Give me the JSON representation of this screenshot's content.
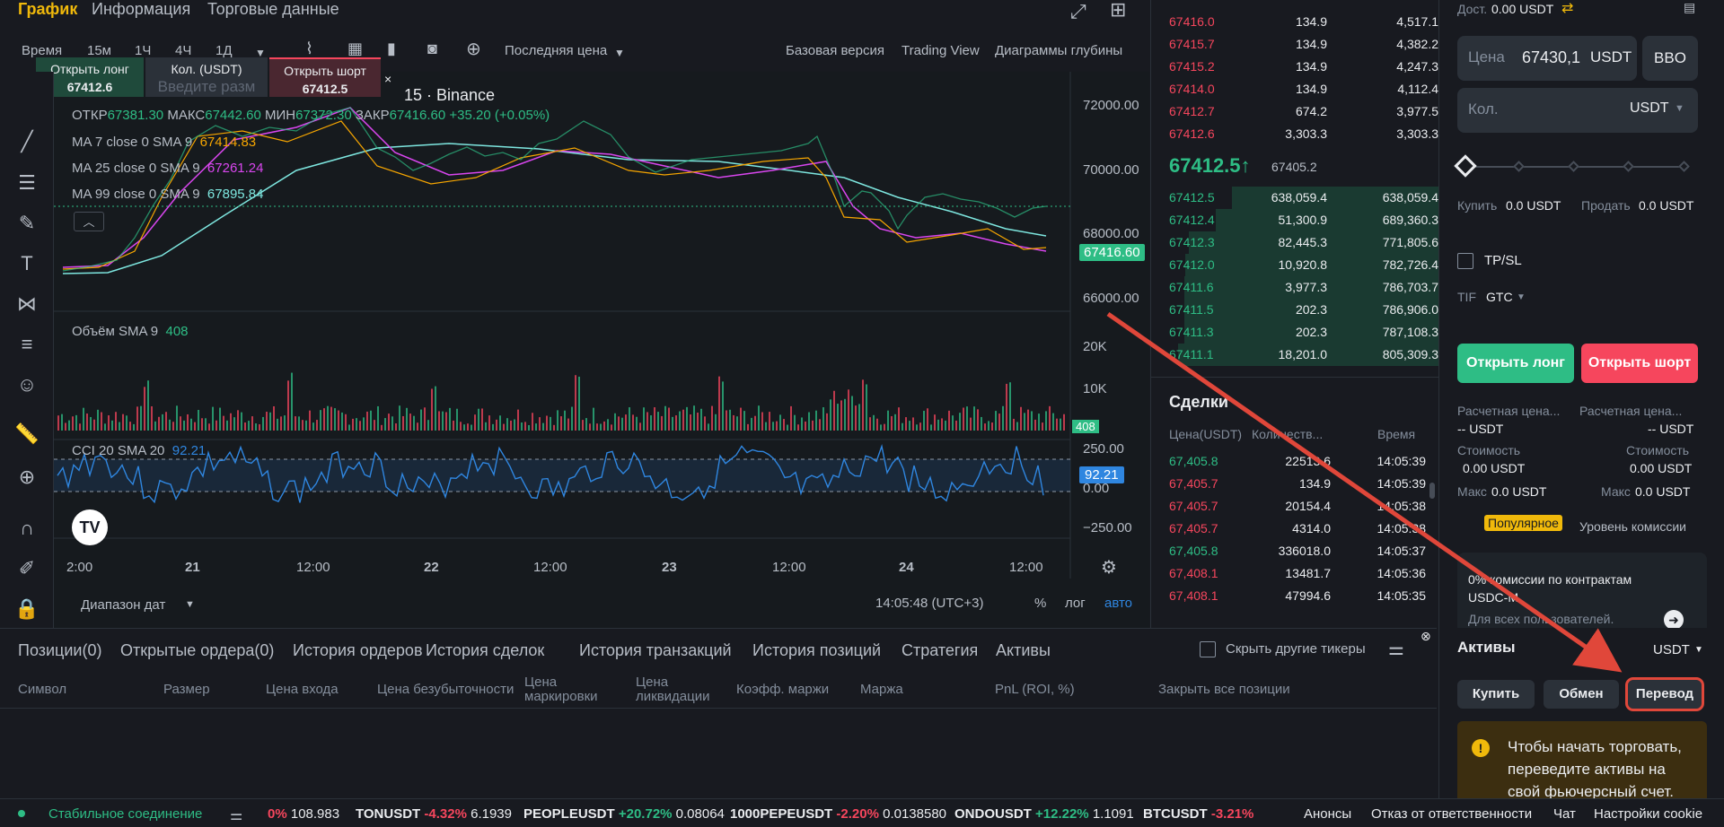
{
  "top_tabs": {
    "chart": "График",
    "info": "Информация",
    "trading_data": "Торговые данные"
  },
  "timeframes": [
    "Время",
    "15м",
    "1Ч",
    "4Ч",
    "1Д"
  ],
  "price_type": "Последняя цена",
  "views": {
    "basic": "Базовая версия",
    "tradingview": "Trading View",
    "depth": "Диаграммы глубины"
  },
  "quick_order": {
    "long_label": "Открыть лонг",
    "long_price": "67412.6",
    "qty_label": "Кол. (USDT)",
    "qty_placeholder": "Введите разм",
    "short_label": "Открыть шорт",
    "short_price": "67412.5"
  },
  "symbol_suffix": "15 · Binance",
  "ohlc": {
    "o_label": "ОТКР",
    "o": "67381.30",
    "h_label": "МАКС",
    "h": "67442.60",
    "l_label": "МИН",
    "l": "67372.30",
    "c_label": "ЗАКР",
    "c": "67416.60",
    "chg": "+35.20 (+0.05%)"
  },
  "ma": [
    {
      "label": "MA 7 close 0 SMA 9",
      "value": "67414.83",
      "color": "#f7a600"
    },
    {
      "label": "MA 25 close 0 SMA 9",
      "value": "67261.24",
      "color": "#d946ef"
    },
    {
      "label": "MA 99 close 0 SMA 9",
      "value": "67895.84",
      "color": "#7ee7e0"
    }
  ],
  "price_axis": [
    "72000.00",
    "70000.00",
    "68000.00",
    "66000.00"
  ],
  "current_price_tag": "67416.60",
  "volume": {
    "label": "Объём SMA 9",
    "value": "408",
    "axis": [
      "20K",
      "10K"
    ],
    "tag": "408"
  },
  "cci": {
    "label": "CCI 20 SMA 20",
    "value": "92.21",
    "axis": [
      "250.00",
      "0.00",
      "−250.00"
    ],
    "tag": "92.21"
  },
  "time_axis": [
    "2:00",
    "21",
    "12:00",
    "22",
    "12:00",
    "23",
    "12:00",
    "24",
    "12:00"
  ],
  "chart_footer": {
    "range": "Диапазон дат",
    "clock": "14:05:48 (UTC+3)",
    "pct": "%",
    "log": "лог",
    "auto": "авто"
  },
  "asks": [
    [
      "67416.0",
      "134.9",
      "4,517.1"
    ],
    [
      "67415.7",
      "134.9",
      "4,382.2"
    ],
    [
      "67415.2",
      "134.9",
      "4,247.3"
    ],
    [
      "67414.0",
      "134.9",
      "4,112.4"
    ],
    [
      "67412.7",
      "674.2",
      "3,977.5"
    ],
    [
      "67412.6",
      "3,303.3",
      "3,303.3"
    ]
  ],
  "mid": {
    "price": "67412.5",
    "arrow": "↑",
    "mark": "67405.2"
  },
  "bids": [
    [
      "67412.5",
      "638,059.4",
      "638,059.4"
    ],
    [
      "67412.4",
      "51,300.9",
      "689,360.3"
    ],
    [
      "67412.3",
      "82,445.3",
      "771,805.6"
    ],
    [
      "67412.0",
      "10,920.8",
      "782,726.4"
    ],
    [
      "67411.6",
      "3,977.3",
      "786,703.7"
    ],
    [
      "67411.5",
      "202.3",
      "786,906.0"
    ],
    [
      "67411.3",
      "202.3",
      "787,108.3"
    ],
    [
      "67411.1",
      "18,201.0",
      "805,309.3"
    ]
  ],
  "trades": {
    "title": "Сделки",
    "headers": [
      "Цена(USDT)",
      "Количеств...",
      "Время"
    ],
    "rows": [
      [
        "67,405.8",
        "22513.6",
        "14:05:39",
        "up"
      ],
      [
        "67,405.7",
        "134.9",
        "14:05:39",
        "down"
      ],
      [
        "67,405.7",
        "20154.4",
        "14:05:38",
        "down"
      ],
      [
        "67,405.7",
        "4314.0",
        "14:05:38",
        "down"
      ],
      [
        "67,405.8",
        "336018.0",
        "14:05:37",
        "up"
      ],
      [
        "67,408.1",
        "13481.7",
        "14:05:36",
        "down"
      ],
      [
        "67,408.1",
        "47994.6",
        "14:05:35",
        "down"
      ]
    ]
  },
  "order_form": {
    "available_label": "Дост.",
    "available": "0.00 USDT",
    "price_label": "Цена",
    "price": "67430,1",
    "price_unit": "USDT",
    "bbo": "BBO",
    "qty_label": "Кол.",
    "qty_unit": "USDT",
    "buy_label": "Купить",
    "buy_value": "0.0 USDT",
    "sell_label": "Продать",
    "sell_value": "0.0 USDT",
    "tpsl": "TP/SL",
    "tif_label": "TIF",
    "tif": "GTC",
    "long_btn": "Открыть лонг",
    "short_btn": "Открыть шорт",
    "liq_label": "Расчетная цена...",
    "liq_value": "-- USDT",
    "cost_label": "Стоимость",
    "cost_value": "0.00 USDT",
    "max_label": "Макс",
    "max_value": "0.0 USDT",
    "popular": "Популярное",
    "fee_level": "Уровень комиссии",
    "promo": "0% комиссии по контрактам USDC-M",
    "promo_sub": "Для всех пользователей."
  },
  "assets": {
    "title": "Активы",
    "currency": "USDT",
    "buy": "Купить",
    "exchange": "Обмен",
    "transfer": "Перевод",
    "notice": "Чтобы начать торговать, переведите активы на свой фьючерсный счет."
  },
  "positions_tabs": [
    "Позиции(0)",
    "Открытые ордера(0)",
    "История ордеров",
    "История сделок",
    "История транзакций",
    "История позиций",
    "Стратегия",
    "Активы"
  ],
  "hide_tickers": "Скрыть другие тикеры",
  "position_columns": [
    "Символ",
    "Размер",
    "Цена входа",
    "Цена безубыточности",
    "Цена маркировки",
    "Цена ликвидации",
    "Коэфф. маржи",
    "Маржа",
    "PnL (ROI, %)",
    "Закрыть все позиции"
  ],
  "status_bar": {
    "connection": "Стабильное соединение",
    "tickers": [
      {
        "sym": "",
        "chg": "0%",
        "price": "108.983",
        "dir": "down"
      },
      {
        "sym": "TONUSDT",
        "chg": "-4.32%",
        "price": "6.1939",
        "dir": "down"
      },
      {
        "sym": "PEOPLEUSDT",
        "chg": "+20.72%",
        "price": "0.08064",
        "dir": "up"
      },
      {
        "sym": "1000PEPEUSDT",
        "chg": "-2.20%",
        "price": "0.0138580",
        "dir": "down"
      },
      {
        "sym": "ONDOUSDT",
        "chg": "+12.22%",
        "price": "1.1091",
        "dir": "up"
      },
      {
        "sym": "BTCUSDT",
        "chg": "-3.21%",
        "price": "",
        "dir": "down"
      }
    ],
    "links": [
      "Анонсы",
      "Отказ от ответственности",
      "Чат",
      "Настройки cookie"
    ]
  },
  "colors": {
    "up": "#2ebd85",
    "down": "#f6465d",
    "accent": "#f0b90b",
    "cci": "#2f86e0",
    "annotation": "#e0473a"
  }
}
